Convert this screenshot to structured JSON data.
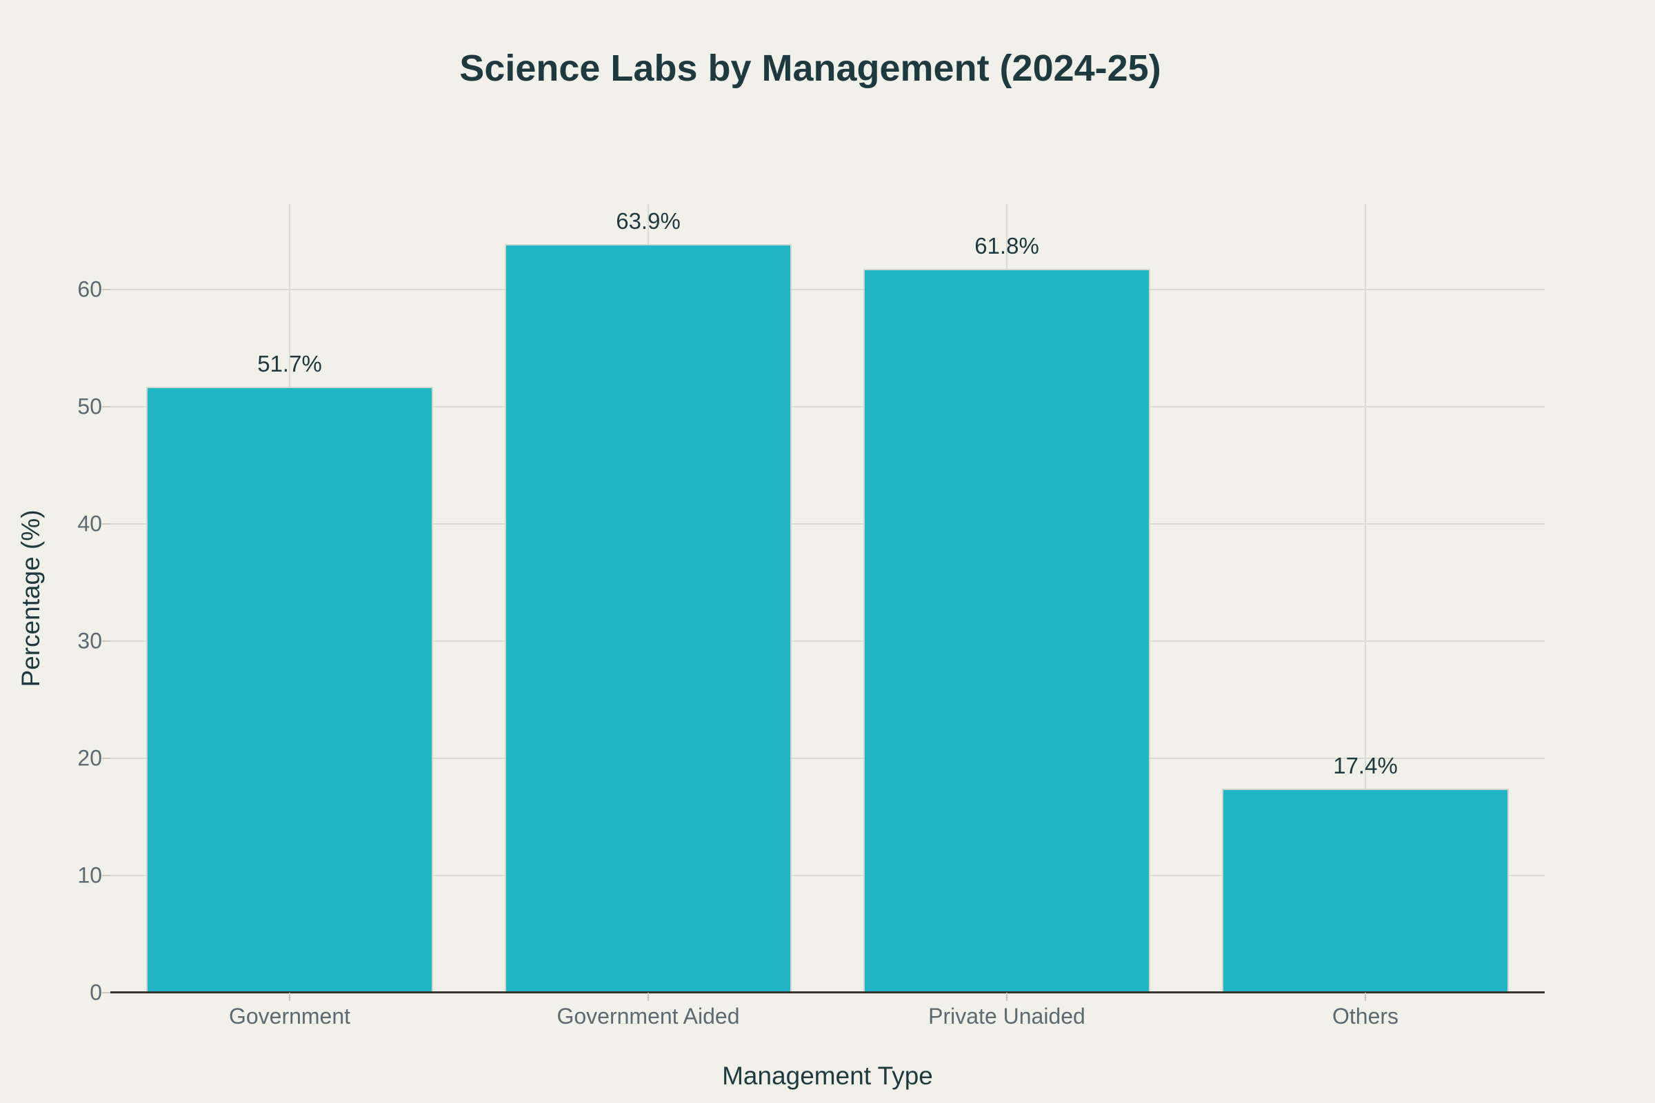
{
  "chart_data": {
    "type": "bar",
    "title": "Science Labs by Management (2024-25)",
    "categories": [
      "Government",
      "Government Aided",
      "Private Unaided",
      "Others"
    ],
    "values": [
      51.7,
      63.9,
      61.8,
      17.4
    ],
    "value_labels": [
      "51.7%",
      "63.9%",
      "61.8%",
      "17.4%"
    ],
    "xlabel": "Management Type",
    "ylabel": "Percentage (%)",
    "yticks": [
      0,
      10,
      20,
      30,
      40,
      50,
      60
    ],
    "ylim": [
      0,
      67.3
    ],
    "grid": true,
    "legend_position": "none",
    "colors": {
      "bar": "#22b5c8",
      "bar_edge": "#d4d7cd",
      "background": "#f1f1ea",
      "heading_text": "#1c3a40",
      "tick_text": "#5b6a72",
      "gridline": "#dadad3",
      "axis_line": "#35352e"
    },
    "layout": {
      "bar_fraction_of_slot": 0.8,
      "orientation": "vertical"
    }
  }
}
